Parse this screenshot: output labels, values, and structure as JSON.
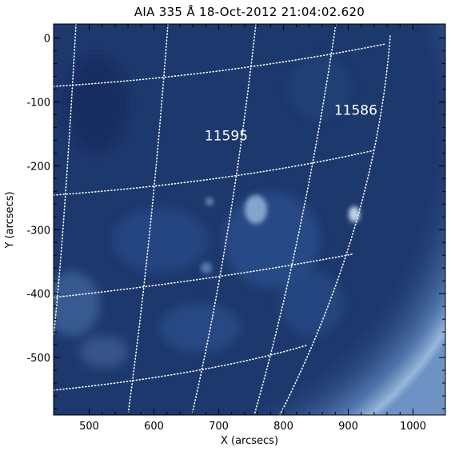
{
  "title": "AIA 335 Å 18-Oct-2012 21:04:02.620",
  "axes": {
    "xlabel": "X (arcsecs)",
    "ylabel": "Y (arcsecs)",
    "xlim": [
      445,
      1050
    ],
    "ylim": [
      -590,
      22
    ],
    "xticks": [
      500,
      600,
      700,
      800,
      900,
      1000
    ],
    "yticks": [
      0,
      -100,
      -200,
      -300,
      -400,
      -500
    ]
  },
  "active_regions": [
    {
      "label": "11595",
      "x": 745,
      "y": -160
    },
    {
      "label": "11586",
      "x": 945,
      "y": -120
    }
  ],
  "colors": {
    "background": "#ffffff",
    "disk_dark": "#1a3263",
    "disk_mid": "#274a82",
    "limb_bright": "#8fb0d8",
    "grid": "#ffffff",
    "text": "#000000"
  }
}
